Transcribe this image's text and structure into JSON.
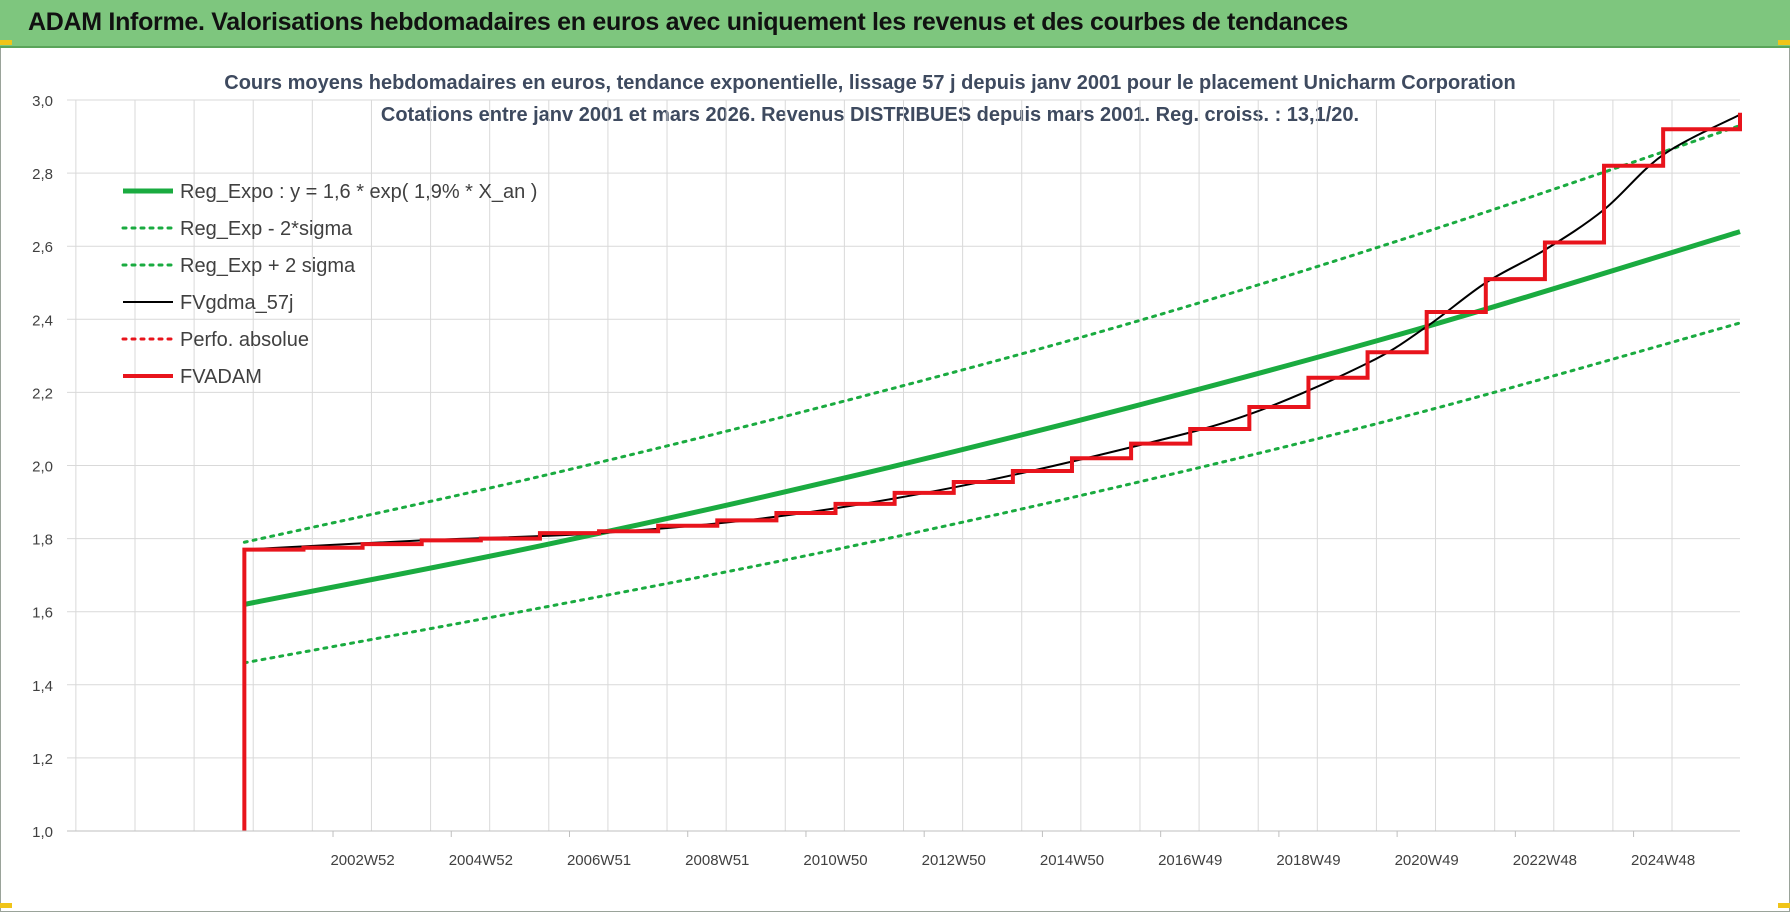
{
  "banner": {
    "title": "ADAM Informe. Valorisations hebdomadaires en euros avec uniquement les revenus et des courbes de tendances"
  },
  "colors": {
    "banner_bg": "#7ec67e",
    "trend": "#1aab40",
    "adam": "#e8141c",
    "smooth": "#000000",
    "grid": "#d9d9d9",
    "axis_text": "#404040",
    "title_text": "#3e4a5f"
  },
  "chart_data": {
    "type": "line",
    "title": "Cours moyens hebdomadaires en euros, tendance exponentielle, lissage 57 j depuis janv 2001 pour le placement Unicharm Corporation",
    "subtitle": "Cotations entre janv 2001 et mars 2026. Revenus DISTRIBUES depuis mars 2001. Reg. croiss. : 13,1/20.",
    "xlabel": "",
    "ylabel": "",
    "ylim": [
      1.0,
      3.0
    ],
    "yticks": [
      "1,0",
      "1,2",
      "1,4",
      "1,6",
      "1,8",
      "2,0",
      "2,2",
      "2,4",
      "2,6",
      "2,8",
      "3,0"
    ],
    "xlim": [
      1998.0,
      2026.3
    ],
    "xticks": [
      {
        "label": "2002W52",
        "x": 2003.0
      },
      {
        "label": "2004W52",
        "x": 2005.0
      },
      {
        "label": "2006W51",
        "x": 2007.0
      },
      {
        "label": "2008W51",
        "x": 2009.0
      },
      {
        "label": "2010W50",
        "x": 2011.0
      },
      {
        "label": "2012W50",
        "x": 2013.0
      },
      {
        "label": "2014W50",
        "x": 2015.0
      },
      {
        "label": "2016W49",
        "x": 2017.0
      },
      {
        "label": "2018W49",
        "x": 2019.0
      },
      {
        "label": "2020W49",
        "x": 2021.0
      },
      {
        "label": "2022W48",
        "x": 2023.0
      },
      {
        "label": "2024W48",
        "x": 2025.0
      }
    ],
    "grid": true,
    "legend_position": "top-left",
    "series": [
      {
        "name": "Reg_Expo : y = 1,6 * exp( 1,9% *  X_an )",
        "style": "solid-thick",
        "color": "#1aab40",
        "x": [
          2001.0,
          2006.0,
          2011.0,
          2016.0,
          2021.0,
          2026.3
        ],
        "y": [
          1.62,
          1.78,
          1.96,
          2.16,
          2.38,
          2.64
        ]
      },
      {
        "name": "Reg_Exp - 2*sigma",
        "style": "dotted",
        "color": "#1aab40",
        "x": [
          2001.0,
          2006.0,
          2011.0,
          2016.0,
          2021.0,
          2026.3
        ],
        "y": [
          1.46,
          1.61,
          1.77,
          1.95,
          2.15,
          2.39
        ]
      },
      {
        "name": "Reg_Exp + 2 sigma",
        "style": "dotted",
        "color": "#1aab40",
        "x": [
          2001.0,
          2006.0,
          2011.0,
          2016.0,
          2021.0,
          2026.3
        ],
        "y": [
          1.79,
          1.97,
          2.17,
          2.39,
          2.64,
          2.93
        ]
      },
      {
        "name": "FVgdma_57j",
        "style": "solid-thin",
        "color": "#000000",
        "x": [
          2001.0,
          2004.0,
          2007.0,
          2010.0,
          2013.0,
          2016.0,
          2018.0,
          2020.0,
          2021.0,
          2022.0,
          2023.0,
          2024.0,
          2025.0,
          2026.3
        ],
        "y": [
          1.77,
          1.795,
          1.815,
          1.86,
          1.94,
          2.05,
          2.14,
          2.28,
          2.38,
          2.5,
          2.59,
          2.7,
          2.85,
          2.96
        ]
      },
      {
        "name": "Perfo. absolue",
        "style": "dotted",
        "color": "#e8141c",
        "x": [],
        "y": []
      },
      {
        "name": "FVADAM",
        "style": "step-thick",
        "color": "#e8141c",
        "x": [
          2001.0,
          2001.0,
          2002.0,
          2003.0,
          2004.0,
          2005.0,
          2006.0,
          2007.0,
          2008.0,
          2009.0,
          2010.0,
          2011.0,
          2012.0,
          2013.0,
          2014.0,
          2015.0,
          2016.0,
          2017.0,
          2018.0,
          2019.0,
          2020.0,
          2021.0,
          2022.0,
          2023.0,
          2024.0,
          2025.0,
          2026.3
        ],
        "y": [
          1.0,
          1.77,
          1.775,
          1.785,
          1.795,
          1.8,
          1.815,
          1.82,
          1.835,
          1.85,
          1.87,
          1.895,
          1.925,
          1.955,
          1.985,
          2.02,
          2.06,
          2.1,
          2.16,
          2.24,
          2.31,
          2.42,
          2.51,
          2.61,
          2.82,
          2.92,
          2.965
        ]
      }
    ]
  }
}
